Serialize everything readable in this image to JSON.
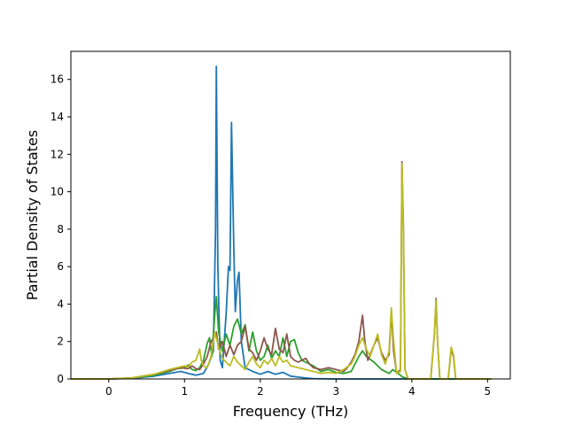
{
  "chart_data": {
    "type": "line",
    "title": "",
    "xlabel": "Frequency (THz)",
    "ylabel": "Partial Density of States",
    "xlim": [
      -0.5,
      5.3
    ],
    "ylim": [
      0,
      17.5
    ],
    "xticks": [
      0,
      1,
      2,
      3,
      4,
      5
    ],
    "yticks": [
      0,
      2,
      4,
      6,
      8,
      10,
      12,
      14,
      16
    ],
    "grid": false,
    "legend": "none",
    "series": [
      {
        "color": "#1f77b4",
        "points": [
          [
            -0.5,
            0
          ],
          [
            0.0,
            0
          ],
          [
            0.3,
            0.03
          ],
          [
            0.6,
            0.15
          ],
          [
            0.8,
            0.3
          ],
          [
            0.95,
            0.4
          ],
          [
            1.05,
            0.3
          ],
          [
            1.15,
            0.2
          ],
          [
            1.25,
            0.3
          ],
          [
            1.32,
            0.8
          ],
          [
            1.38,
            1.5
          ],
          [
            1.41,
            8.0
          ],
          [
            1.42,
            16.7
          ],
          [
            1.44,
            6.0
          ],
          [
            1.47,
            1.0
          ],
          [
            1.5,
            0.6
          ],
          [
            1.55,
            3.5
          ],
          [
            1.58,
            6.0
          ],
          [
            1.6,
            5.8
          ],
          [
            1.62,
            13.7
          ],
          [
            1.65,
            7.0
          ],
          [
            1.67,
            3.6
          ],
          [
            1.7,
            5.3
          ],
          [
            1.72,
            5.7
          ],
          [
            1.75,
            2.0
          ],
          [
            1.8,
            0.6
          ],
          [
            1.9,
            0.4
          ],
          [
            2.0,
            0.25
          ],
          [
            2.1,
            0.4
          ],
          [
            2.2,
            0.25
          ],
          [
            2.3,
            0.35
          ],
          [
            2.4,
            0.15
          ],
          [
            2.5,
            0.1
          ],
          [
            2.6,
            0.05
          ],
          [
            2.7,
            0.02
          ],
          [
            3.0,
            0
          ],
          [
            3.5,
            0
          ],
          [
            5.05,
            0
          ]
        ]
      },
      {
        "color": "#2ca02c",
        "points": [
          [
            -0.5,
            0
          ],
          [
            0.0,
            0
          ],
          [
            0.3,
            0.05
          ],
          [
            0.6,
            0.2
          ],
          [
            0.8,
            0.4
          ],
          [
            0.9,
            0.55
          ],
          [
            1.0,
            0.6
          ],
          [
            1.05,
            0.75
          ],
          [
            1.1,
            0.5
          ],
          [
            1.15,
            0.45
          ],
          [
            1.2,
            0.6
          ],
          [
            1.25,
            1.0
          ],
          [
            1.3,
            1.9
          ],
          [
            1.33,
            2.2
          ],
          [
            1.36,
            1.2
          ],
          [
            1.4,
            3.5
          ],
          [
            1.42,
            4.4
          ],
          [
            1.45,
            2.5
          ],
          [
            1.5,
            1.5
          ],
          [
            1.55,
            2.4
          ],
          [
            1.6,
            1.8
          ],
          [
            1.65,
            2.8
          ],
          [
            1.7,
            3.2
          ],
          [
            1.75,
            2.4
          ],
          [
            1.8,
            2.9
          ],
          [
            1.85,
            1.5
          ],
          [
            1.9,
            2.5
          ],
          [
            1.95,
            1.5
          ],
          [
            2.0,
            1.0
          ],
          [
            2.05,
            1.2
          ],
          [
            2.1,
            1.8
          ],
          [
            2.15,
            1.1
          ],
          [
            2.2,
            1.5
          ],
          [
            2.25,
            1.2
          ],
          [
            2.3,
            2.2
          ],
          [
            2.35,
            1.2
          ],
          [
            2.4,
            2.0
          ],
          [
            2.45,
            2.1
          ],
          [
            2.5,
            1.4
          ],
          [
            2.55,
            1.0
          ],
          [
            2.6,
            0.9
          ],
          [
            2.7,
            0.7
          ],
          [
            2.8,
            0.4
          ],
          [
            2.9,
            0.5
          ],
          [
            3.0,
            0.35
          ],
          [
            3.1,
            0.3
          ],
          [
            3.2,
            0.4
          ],
          [
            3.3,
            1.2
          ],
          [
            3.35,
            1.5
          ],
          [
            3.4,
            1.2
          ],
          [
            3.5,
            0.9
          ],
          [
            3.6,
            0.5
          ],
          [
            3.7,
            0.3
          ],
          [
            3.75,
            0.5
          ],
          [
            3.85,
            0.2
          ],
          [
            3.88,
            0.1
          ],
          [
            3.95,
            0
          ],
          [
            5.05,
            0
          ]
        ]
      },
      {
        "color": "#8c564b",
        "points": [
          [
            -0.5,
            0
          ],
          [
            0.0,
            0
          ],
          [
            0.3,
            0.05
          ],
          [
            0.6,
            0.25
          ],
          [
            0.8,
            0.45
          ],
          [
            0.95,
            0.6
          ],
          [
            1.05,
            0.55
          ],
          [
            1.1,
            0.7
          ],
          [
            1.15,
            0.55
          ],
          [
            1.2,
            0.5
          ],
          [
            1.25,
            0.8
          ],
          [
            1.3,
            1.2
          ],
          [
            1.35,
            2.0
          ],
          [
            1.4,
            2.3
          ],
          [
            1.42,
            2.5
          ],
          [
            1.45,
            1.6
          ],
          [
            1.5,
            2.0
          ],
          [
            1.55,
            1.2
          ],
          [
            1.6,
            1.8
          ],
          [
            1.65,
            1.3
          ],
          [
            1.7,
            1.8
          ],
          [
            1.75,
            2.0
          ],
          [
            1.8,
            2.8
          ],
          [
            1.85,
            1.6
          ],
          [
            1.9,
            1.4
          ],
          [
            1.95,
            1.0
          ],
          [
            2.0,
            1.5
          ],
          [
            2.05,
            2.2
          ],
          [
            2.1,
            1.6
          ],
          [
            2.15,
            1.3
          ],
          [
            2.2,
            2.7
          ],
          [
            2.25,
            1.6
          ],
          [
            2.3,
            1.4
          ],
          [
            2.35,
            2.4
          ],
          [
            2.4,
            1.2
          ],
          [
            2.45,
            1.0
          ],
          [
            2.5,
            0.9
          ],
          [
            2.6,
            1.1
          ],
          [
            2.65,
            0.8
          ],
          [
            2.7,
            0.6
          ],
          [
            2.8,
            0.5
          ],
          [
            2.9,
            0.6
          ],
          [
            3.0,
            0.5
          ],
          [
            3.1,
            0.4
          ],
          [
            3.15,
            0.6
          ],
          [
            3.2,
            0.9
          ],
          [
            3.25,
            1.3
          ],
          [
            3.3,
            2.0
          ],
          [
            3.35,
            3.4
          ],
          [
            3.38,
            2.0
          ],
          [
            3.42,
            1.0
          ],
          [
            3.5,
            1.8
          ],
          [
            3.55,
            2.2
          ],
          [
            3.6,
            1.4
          ],
          [
            3.65,
            1.0
          ],
          [
            3.7,
            1.3
          ],
          [
            3.73,
            3.6
          ],
          [
            3.76,
            1.5
          ],
          [
            3.8,
            0.3
          ],
          [
            3.85,
            0.5
          ],
          [
            3.87,
            11.6
          ],
          [
            3.89,
            8.0
          ],
          [
            3.91,
            0.5
          ],
          [
            3.95,
            0
          ],
          [
            4.25,
            0
          ],
          [
            4.3,
            2.5
          ],
          [
            4.32,
            4.3
          ],
          [
            4.34,
            2.0
          ],
          [
            4.37,
            0
          ],
          [
            4.48,
            0
          ],
          [
            4.52,
            1.6
          ],
          [
            4.55,
            1.2
          ],
          [
            4.58,
            0
          ],
          [
            5.05,
            0
          ]
        ]
      },
      {
        "color": "#bcbd22",
        "points": [
          [
            -0.5,
            0
          ],
          [
            0.0,
            0
          ],
          [
            0.3,
            0.05
          ],
          [
            0.6,
            0.25
          ],
          [
            0.8,
            0.5
          ],
          [
            0.9,
            0.6
          ],
          [
            1.0,
            0.7
          ],
          [
            1.05,
            0.65
          ],
          [
            1.1,
            0.9
          ],
          [
            1.15,
            1.0
          ],
          [
            1.2,
            1.6
          ],
          [
            1.22,
            1.0
          ],
          [
            1.25,
            0.7
          ],
          [
            1.3,
            0.6
          ],
          [
            1.35,
            1.2
          ],
          [
            1.4,
            2.5
          ],
          [
            1.45,
            1.7
          ],
          [
            1.5,
            1.1
          ],
          [
            1.55,
            0.9
          ],
          [
            1.6,
            0.7
          ],
          [
            1.65,
            1.2
          ],
          [
            1.7,
            0.9
          ],
          [
            1.75,
            0.7
          ],
          [
            1.8,
            0.5
          ],
          [
            1.85,
            0.9
          ],
          [
            1.9,
            1.2
          ],
          [
            1.95,
            0.8
          ],
          [
            2.0,
            0.6
          ],
          [
            2.05,
            1.0
          ],
          [
            2.1,
            0.8
          ],
          [
            2.15,
            1.1
          ],
          [
            2.2,
            0.7
          ],
          [
            2.25,
            1.2
          ],
          [
            2.3,
            0.9
          ],
          [
            2.35,
            1.0
          ],
          [
            2.4,
            0.7
          ],
          [
            2.5,
            0.6
          ],
          [
            2.6,
            0.5
          ],
          [
            2.7,
            0.4
          ],
          [
            2.8,
            0.3
          ],
          [
            2.9,
            0.35
          ],
          [
            3.0,
            0.3
          ],
          [
            3.1,
            0.5
          ],
          [
            3.2,
            0.8
          ],
          [
            3.25,
            1.2
          ],
          [
            3.3,
            1.8
          ],
          [
            3.35,
            2.2
          ],
          [
            3.4,
            1.6
          ],
          [
            3.45,
            1.2
          ],
          [
            3.5,
            1.8
          ],
          [
            3.55,
            2.4
          ],
          [
            3.6,
            1.3
          ],
          [
            3.65,
            0.8
          ],
          [
            3.7,
            1.5
          ],
          [
            3.73,
            3.8
          ],
          [
            3.76,
            2.0
          ],
          [
            3.8,
            0.3
          ],
          [
            3.85,
            0.4
          ],
          [
            3.87,
            11.5
          ],
          [
            3.89,
            7.5
          ],
          [
            3.91,
            0.5
          ],
          [
            3.95,
            0
          ],
          [
            4.25,
            0
          ],
          [
            4.3,
            2.5
          ],
          [
            4.32,
            4.2
          ],
          [
            4.34,
            2.0
          ],
          [
            4.37,
            0
          ],
          [
            4.48,
            0
          ],
          [
            4.52,
            1.7
          ],
          [
            4.55,
            1.3
          ],
          [
            4.58,
            0
          ],
          [
            5.05,
            0
          ]
        ]
      }
    ]
  }
}
